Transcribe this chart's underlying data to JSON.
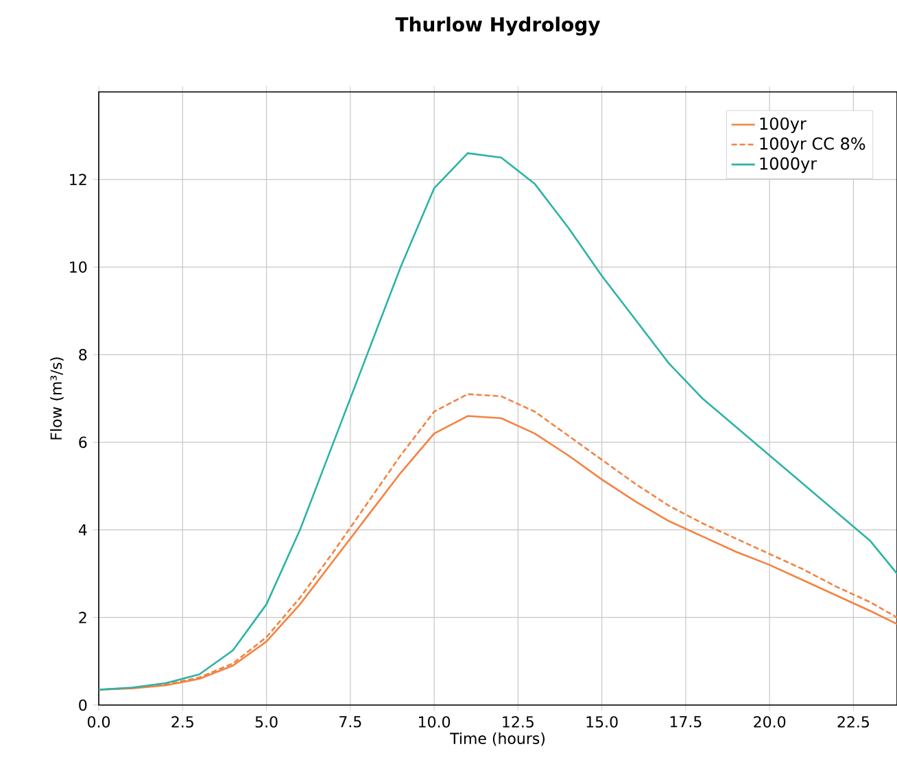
{
  "chart_data": {
    "type": "line",
    "title": "Thurlow Hydrology",
    "xlabel": "Time (hours)",
    "ylabel": "Flow (m³/s)",
    "x": [
      0,
      1,
      2,
      3,
      4,
      5,
      6,
      7,
      8,
      9,
      10,
      11,
      12,
      13,
      14,
      15,
      16,
      17,
      18,
      19,
      20,
      21,
      22,
      23,
      23.8
    ],
    "series": [
      {
        "name": "100yr",
        "color": "#f5813f",
        "line_style": "solid",
        "values": [
          0.35,
          0.38,
          0.45,
          0.6,
          0.9,
          1.45,
          2.3,
          3.3,
          4.3,
          5.3,
          6.2,
          6.6,
          6.55,
          6.2,
          5.7,
          5.15,
          4.65,
          4.2,
          3.85,
          3.5,
          3.2,
          2.85,
          2.5,
          2.15,
          1.85
        ]
      },
      {
        "name": "100yr CC 8%",
        "color": "#f5813f",
        "line_style": "dashed",
        "values": [
          0.35,
          0.39,
          0.47,
          0.63,
          0.95,
          1.55,
          2.45,
          3.5,
          4.6,
          5.7,
          6.7,
          7.1,
          7.05,
          6.7,
          6.15,
          5.6,
          5.05,
          4.55,
          4.15,
          3.8,
          3.45,
          3.1,
          2.7,
          2.35,
          2.0
        ]
      },
      {
        "name": "1000yr",
        "color": "#2ab3a6",
        "line_style": "solid",
        "values": [
          0.35,
          0.4,
          0.5,
          0.7,
          1.25,
          2.3,
          4.0,
          6.0,
          8.0,
          10.0,
          11.8,
          12.6,
          12.5,
          11.9,
          10.9,
          9.8,
          8.8,
          7.8,
          7.0,
          6.35,
          5.7,
          5.05,
          4.4,
          3.75,
          3.0
        ]
      }
    ],
    "xlim": [
      0,
      23.8
    ],
    "ylim": [
      0,
      14
    ],
    "xticks": [
      {
        "value": 0,
        "label": "0.0"
      },
      {
        "value": 2.5,
        "label": "2.5"
      },
      {
        "value": 5,
        "label": "5.0"
      },
      {
        "value": 7.5,
        "label": "7.5"
      },
      {
        "value": 10,
        "label": "10.0"
      },
      {
        "value": 12.5,
        "label": "12.5"
      },
      {
        "value": 15,
        "label": "15.0"
      },
      {
        "value": 17.5,
        "label": "17.5"
      },
      {
        "value": 20,
        "label": "20.0"
      },
      {
        "value": 22.5,
        "label": "22.5"
      }
    ],
    "yticks": [
      0,
      2,
      4,
      6,
      8,
      10,
      12
    ],
    "grid": true,
    "legend": "top right",
    "marker": "none"
  }
}
